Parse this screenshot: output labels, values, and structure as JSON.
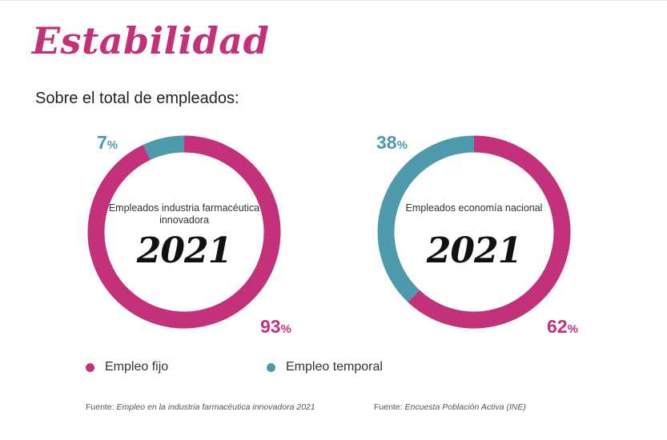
{
  "title": "Estabilidad",
  "subtitle": "Sobre el total de empleados:",
  "colors": {
    "fijo": "#c2317a",
    "temporal": "#4e9aad"
  },
  "chart_data": [
    {
      "type": "pie",
      "center_label": "Empleados industria farmacéutica innovadora",
      "year": "2021",
      "categories": [
        "Empleo fijo",
        "Empleo temporal"
      ],
      "values": [
        93,
        7
      ],
      "value_labels": {
        "fijo": "93",
        "temporal": "7"
      },
      "unit": "%"
    },
    {
      "type": "pie",
      "center_label": "Empleados economía nacional",
      "year": "2021",
      "categories": [
        "Empleo fijo",
        "Empleo temporal"
      ],
      "values": [
        62,
        38
      ],
      "value_labels": {
        "fijo": "62",
        "temporal": "38"
      },
      "unit": "%"
    }
  ],
  "legend": {
    "fijo": "Empleo fijo",
    "temporal": "Empleo temporal"
  },
  "sources": [
    {
      "prefix": "Fuente: ",
      "text": "Empleo en la industria farmacéutica innovadora 2021"
    },
    {
      "prefix": "Fuente: ",
      "text": "Encuesta Población Activa (INE)"
    }
  ]
}
